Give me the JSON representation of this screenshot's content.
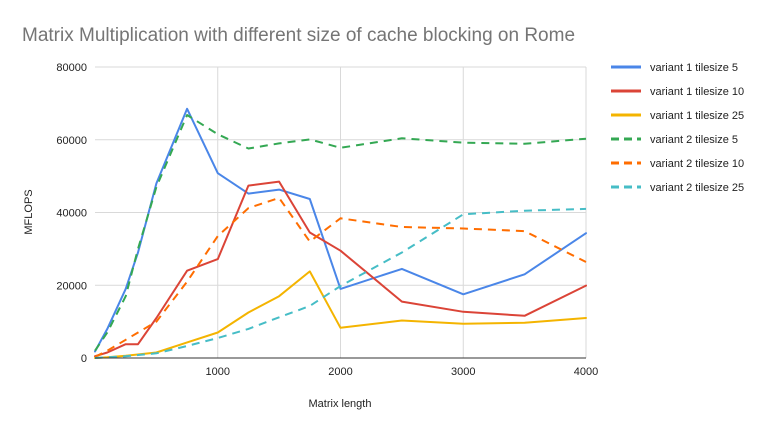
{
  "chart_data": {
    "type": "line",
    "title": "Matrix Multiplication with different size of cache blocking on Rome",
    "xlabel": "Matrix length",
    "ylabel": "MFLOPS",
    "xlim": [
      0,
      4000
    ],
    "ylim": [
      0,
      80000
    ],
    "x_ticks": [
      "1000",
      "2000",
      "3000",
      "4000"
    ],
    "x_tick_values": [
      1000,
      2000,
      3000,
      4000
    ],
    "y_ticks": [
      "0",
      "20000",
      "40000",
      "60000",
      "80000"
    ],
    "y_tick_values": [
      0,
      20000,
      40000,
      60000,
      80000
    ],
    "grid": true,
    "legend_position": "right",
    "series": [
      {
        "name": "variant 1 tilesize 5",
        "color": "#4a86e8",
        "dash": "solid",
        "points": [
          [
            0,
            1800
          ],
          [
            100,
            8000
          ],
          [
            250,
            19000
          ],
          [
            350,
            29000
          ],
          [
            500,
            48000
          ],
          [
            750,
            68500
          ],
          [
            1000,
            50800
          ],
          [
            1250,
            45200
          ],
          [
            1500,
            46300
          ],
          [
            1750,
            43700
          ],
          [
            2000,
            19000
          ],
          [
            2500,
            24500
          ],
          [
            3000,
            17500
          ],
          [
            3500,
            23000
          ],
          [
            4000,
            34300
          ]
        ]
      },
      {
        "name": "variant 1 tilesize 10",
        "color": "#db4437",
        "dash": "solid",
        "points": [
          [
            0,
            500
          ],
          [
            100,
            1500
          ],
          [
            250,
            3800
          ],
          [
            350,
            3800
          ],
          [
            500,
            11000
          ],
          [
            750,
            24000
          ],
          [
            1000,
            27200
          ],
          [
            1250,
            47400
          ],
          [
            1500,
            48500
          ],
          [
            1750,
            34500
          ],
          [
            2000,
            29500
          ],
          [
            2500,
            15500
          ],
          [
            3000,
            12700
          ],
          [
            3500,
            11600
          ],
          [
            4000,
            19900
          ]
        ]
      },
      {
        "name": "variant 1 tilesize 25",
        "color": "#f4b400",
        "dash": "solid",
        "points": [
          [
            0,
            0
          ],
          [
            100,
            200
          ],
          [
            250,
            600
          ],
          [
            500,
            1500
          ],
          [
            750,
            4300
          ],
          [
            1000,
            7000
          ],
          [
            1250,
            12500
          ],
          [
            1500,
            17000
          ],
          [
            1750,
            23800
          ],
          [
            2000,
            8300
          ],
          [
            2500,
            10300
          ],
          [
            3000,
            9400
          ],
          [
            3500,
            9700
          ],
          [
            4000,
            11000
          ]
        ]
      },
      {
        "name": "variant 2 tilesize 5",
        "color": "#34a853",
        "dash": "dashed",
        "points": [
          [
            0,
            2000
          ],
          [
            100,
            7000
          ],
          [
            250,
            17000
          ],
          [
            350,
            30000
          ],
          [
            500,
            47000
          ],
          [
            750,
            66800
          ],
          [
            1000,
            61500
          ],
          [
            1250,
            57600
          ],
          [
            1500,
            59000
          ],
          [
            1750,
            60100
          ],
          [
            2000,
            57800
          ],
          [
            2500,
            60400
          ],
          [
            3000,
            59200
          ],
          [
            3500,
            58900
          ],
          [
            4000,
            60300
          ]
        ]
      },
      {
        "name": "variant 2 tilesize 10",
        "color": "#ff6d00",
        "dash": "dashed",
        "points": [
          [
            0,
            300
          ],
          [
            100,
            2000
          ],
          [
            250,
            5000
          ],
          [
            500,
            10000
          ],
          [
            750,
            21000
          ],
          [
            1000,
            33500
          ],
          [
            1250,
            41200
          ],
          [
            1500,
            44000
          ],
          [
            1750,
            32000
          ],
          [
            2000,
            38400
          ],
          [
            2500,
            36000
          ],
          [
            3000,
            35600
          ],
          [
            3500,
            34900
          ],
          [
            4000,
            26400
          ]
        ]
      },
      {
        "name": "variant 2 tilesize 25",
        "color": "#46bdc6",
        "dash": "dashed",
        "points": [
          [
            0,
            0
          ],
          [
            100,
            200
          ],
          [
            250,
            500
          ],
          [
            500,
            1300
          ],
          [
            750,
            3300
          ],
          [
            1000,
            5500
          ],
          [
            1250,
            8000
          ],
          [
            1500,
            11200
          ],
          [
            1750,
            14300
          ],
          [
            2000,
            19800
          ],
          [
            2500,
            29000
          ],
          [
            3000,
            39500
          ],
          [
            3500,
            40500
          ],
          [
            4000,
            41000
          ]
        ]
      }
    ]
  }
}
